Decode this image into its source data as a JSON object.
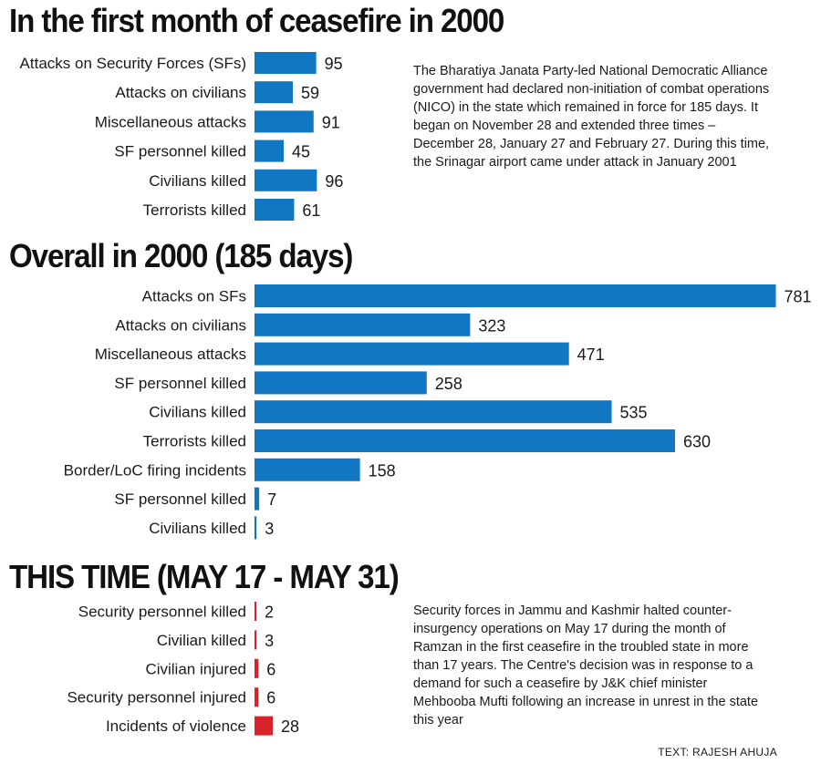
{
  "chart_data": [
    {
      "type": "bar",
      "orientation": "horizontal",
      "title": "In the first month of ceasefire in 2000",
      "color": "#1277c2",
      "categories": [
        "Attacks on Security Forces (SFs)",
        "Attacks on civilians",
        "Miscellaneous attacks",
        "SF personnel killed",
        "Civilians killed",
        "Terrorists killed"
      ],
      "values": [
        95,
        59,
        91,
        45,
        96,
        61
      ]
    },
    {
      "type": "bar",
      "orientation": "horizontal",
      "title": "Overall in 2000 (185 days)",
      "color": "#1277c2",
      "categories": [
        "Attacks on SFs",
        "Attacks on civilians",
        "Miscellaneous attacks",
        "SF personnel killed",
        "Civilians killed",
        "Terrorists killed",
        "Border/LoC firing incidents",
        "SF personnel killed",
        "Civilians killed"
      ],
      "values": [
        781,
        323,
        471,
        258,
        535,
        630,
        158,
        7,
        3
      ]
    },
    {
      "type": "bar",
      "orientation": "horizontal",
      "title": "THIS TIME (MAY 17 - MAY 31)",
      "color": "#d9232a",
      "categories": [
        "Security personnel killed",
        "Civilian killed",
        "Civilian injured",
        "Security personnel injured",
        "Incidents of violence"
      ],
      "values": [
        2,
        3,
        6,
        6,
        28
      ]
    }
  ],
  "notes": {
    "nico": "The Bharatiya Janata Party-led National Democratic Alliance government had declared non-initiation of combat operations (NICO) in the state which remained in force for 185 days. It began on November 28 and extended three times – December 28, January 27 and February 27. During this time, the Srinagar airport came under attack in January 2001",
    "ramzan": "Security forces in Jammu and Kashmir halted counter-insurgency operations on May 17 during the month of Ramzan in the first ceasefire in the troubled state in more than 17 years. The Centre's decision was in response to a demand for such a ceasefire by J&K chief minister Mehbooba Mufti following an increase in unrest in the state this year"
  },
  "credit": "TEXT: RAJESH AHUJA"
}
